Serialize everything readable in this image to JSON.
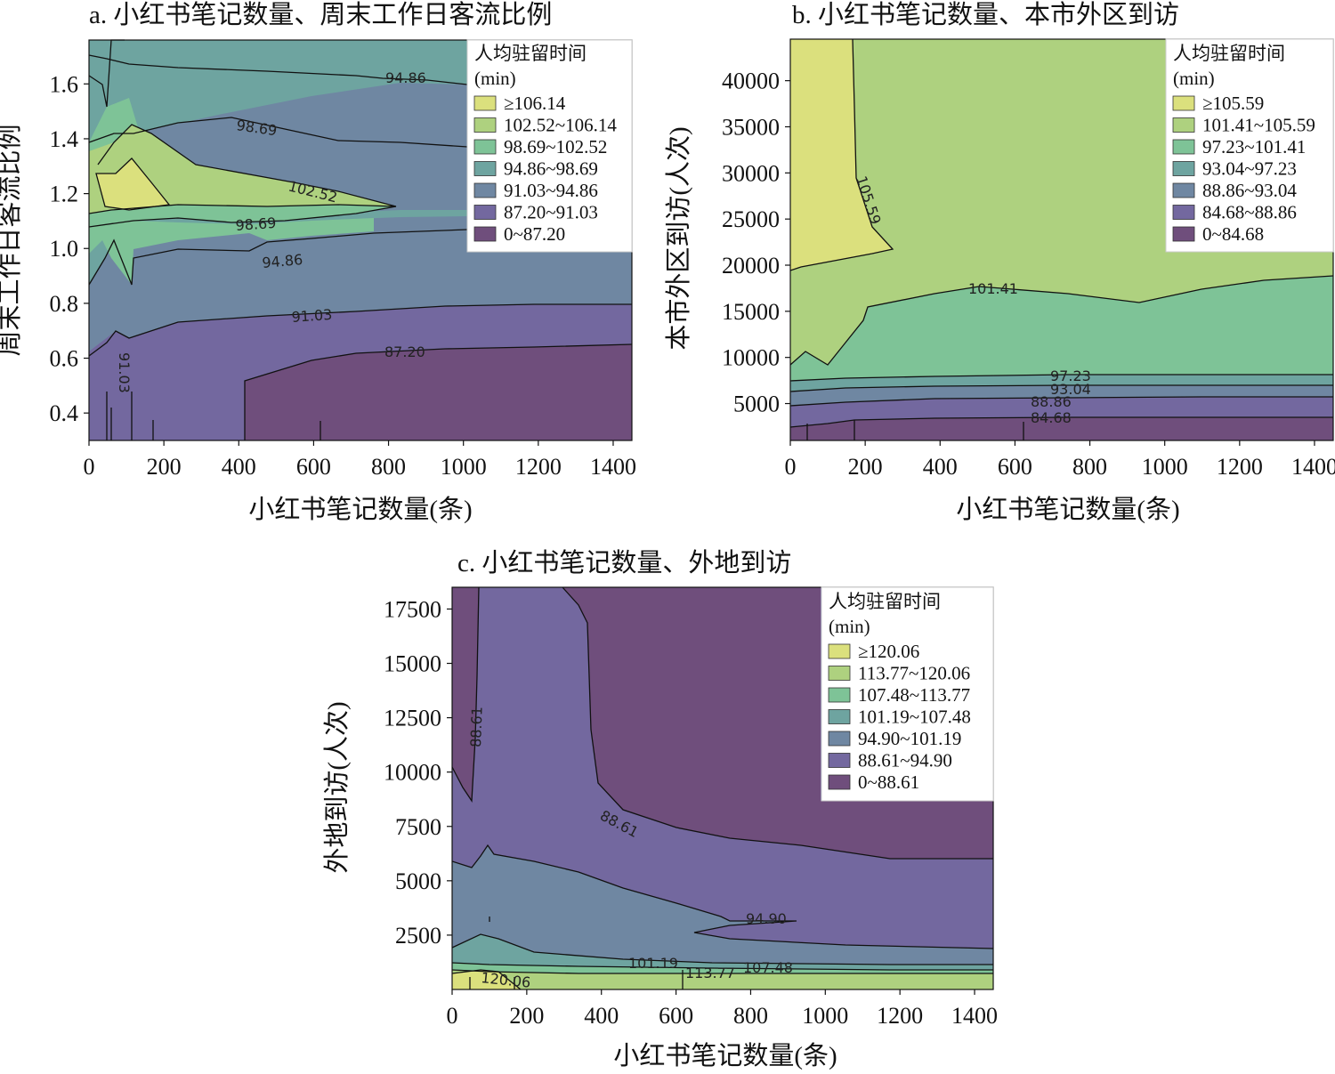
{
  "colors": {
    "c0": "#6f4e7c",
    "c1": "#73689f",
    "c2": "#6f87a2",
    "c3": "#6ea4a0",
    "c4": "#7ec397",
    "c5": "#aed17f",
    "c6": "#dbe07d",
    "line": "#111111"
  },
  "chart_data": [
    {
      "type": "contour",
      "title": "a. 小红书笔记数量、周末工作日客流比例",
      "xlabel": "小红书笔记数量(条)",
      "ylabel": "周末工作日客流比例",
      "xlim": [
        0,
        1450
      ],
      "ylim": [
        0.3,
        1.76
      ],
      "x_ticks": [
        "0",
        "200",
        "400",
        "600",
        "800",
        "1000",
        "1200",
        "1400"
      ],
      "x_tick_values": [
        0,
        200,
        400,
        600,
        800,
        1000,
        1200,
        1400
      ],
      "y_ticks": [
        "0.4",
        "0.6",
        "0.8",
        "1.0",
        "1.2",
        "1.4",
        "1.6"
      ],
      "y_tick_values": [
        0.4,
        0.6,
        0.8,
        1.0,
        1.2,
        1.4,
        1.6
      ],
      "legend": {
        "title_line1": "人均驻留时间",
        "title_line2": "(min)",
        "entries": [
          "≥106.14",
          "102.52~106.14",
          "98.69~102.52",
          "94.86~98.69",
          "91.03~94.86",
          "87.20~91.03",
          "0~87.20"
        ]
      },
      "contour_labels": [
        "94.86",
        "98.69",
        "102.52",
        "98.69",
        "94.86",
        "91.03",
        "87.20",
        "91.03"
      ]
    },
    {
      "type": "contour",
      "title": "b. 小红书笔记数量、本市外区到访",
      "xlabel": "小红书笔记数量(条)",
      "ylabel": "本市外区到访(人次)",
      "xlim": [
        0,
        1450
      ],
      "ylim": [
        1000,
        44500
      ],
      "x_ticks": [
        "0",
        "200",
        "400",
        "600",
        "800",
        "1000",
        "1200",
        "1400"
      ],
      "x_tick_values": [
        0,
        200,
        400,
        600,
        800,
        1000,
        1200,
        1400
      ],
      "y_ticks": [
        "5000",
        "10000",
        "15000",
        "20000",
        "25000",
        "30000",
        "35000",
        "40000"
      ],
      "y_tick_values": [
        5000,
        10000,
        15000,
        20000,
        25000,
        30000,
        35000,
        40000
      ],
      "legend": {
        "title_line1": "人均驻留时间",
        "title_line2": "(min)",
        "entries": [
          "≥105.59",
          "101.41~105.59",
          "97.23~101.41",
          "93.04~97.23",
          "88.86~93.04",
          "84.68~88.86",
          "0~84.68"
        ]
      },
      "contour_labels": [
        "105.59",
        "101.41",
        "97.23",
        "93.04",
        "88.86",
        "84.68"
      ]
    },
    {
      "type": "contour",
      "title": "c. 小红书笔记数量、外地到访",
      "xlabel": "小红书笔记数量(条)",
      "ylabel": "外地到访(人次)",
      "xlim": [
        0,
        1450
      ],
      "ylim": [
        0,
        18500
      ],
      "x_ticks": [
        "0",
        "200",
        "400",
        "600",
        "800",
        "1000",
        "1200",
        "1400"
      ],
      "x_tick_values": [
        0,
        200,
        400,
        600,
        800,
        1000,
        1200,
        1400
      ],
      "y_ticks": [
        "2500",
        "5000",
        "7500",
        "10000",
        "12500",
        "15000",
        "17500"
      ],
      "y_tick_values": [
        2500,
        5000,
        7500,
        10000,
        12500,
        15000,
        17500
      ],
      "legend": {
        "title_line1": "人均驻留时间",
        "title_line2": "(min)",
        "entries": [
          "≥120.06",
          "113.77~120.06",
          "107.48~113.77",
          "101.19~107.48",
          "94.90~101.19",
          "88.61~94.90",
          "0~88.61"
        ]
      },
      "contour_labels": [
        "88.61",
        "88.61",
        "94.90",
        "101.19",
        "113.77",
        "107.48",
        "120.06"
      ]
    }
  ]
}
